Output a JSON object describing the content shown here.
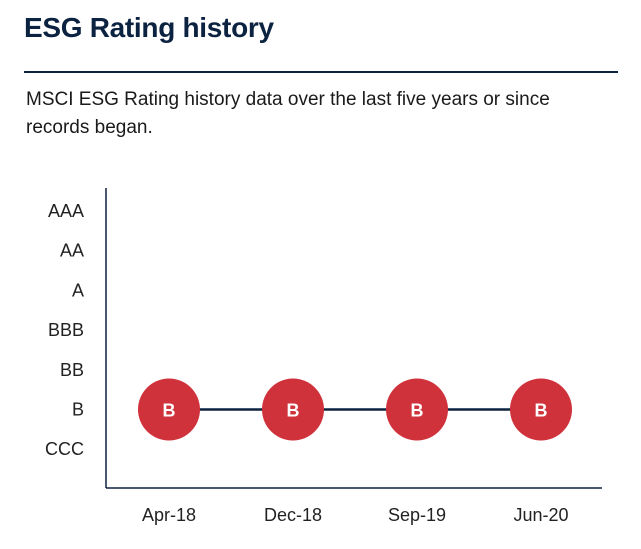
{
  "header": {
    "title": "ESG Rating history",
    "subtitle": "MSCI ESG Rating history data over the last five years or since records began."
  },
  "colors": {
    "title": "#0b2240",
    "axis": "#0b2240",
    "line": "#0b2240",
    "marker": "#d0323b",
    "marker_text": "#ffffff"
  },
  "chart_data": {
    "type": "line",
    "title": "ESG Rating history",
    "xlabel": "",
    "ylabel": "",
    "y_categories": [
      "CCC",
      "B",
      "BB",
      "BBB",
      "A",
      "AA",
      "AAA"
    ],
    "categories": [
      "Apr-18",
      "Dec-18",
      "Sep-19",
      "Jun-20"
    ],
    "series": [
      {
        "name": "MSCI ESG Rating",
        "values": [
          "B",
          "B",
          "B",
          "B"
        ]
      }
    ],
    "grid": false,
    "legend": "none"
  }
}
